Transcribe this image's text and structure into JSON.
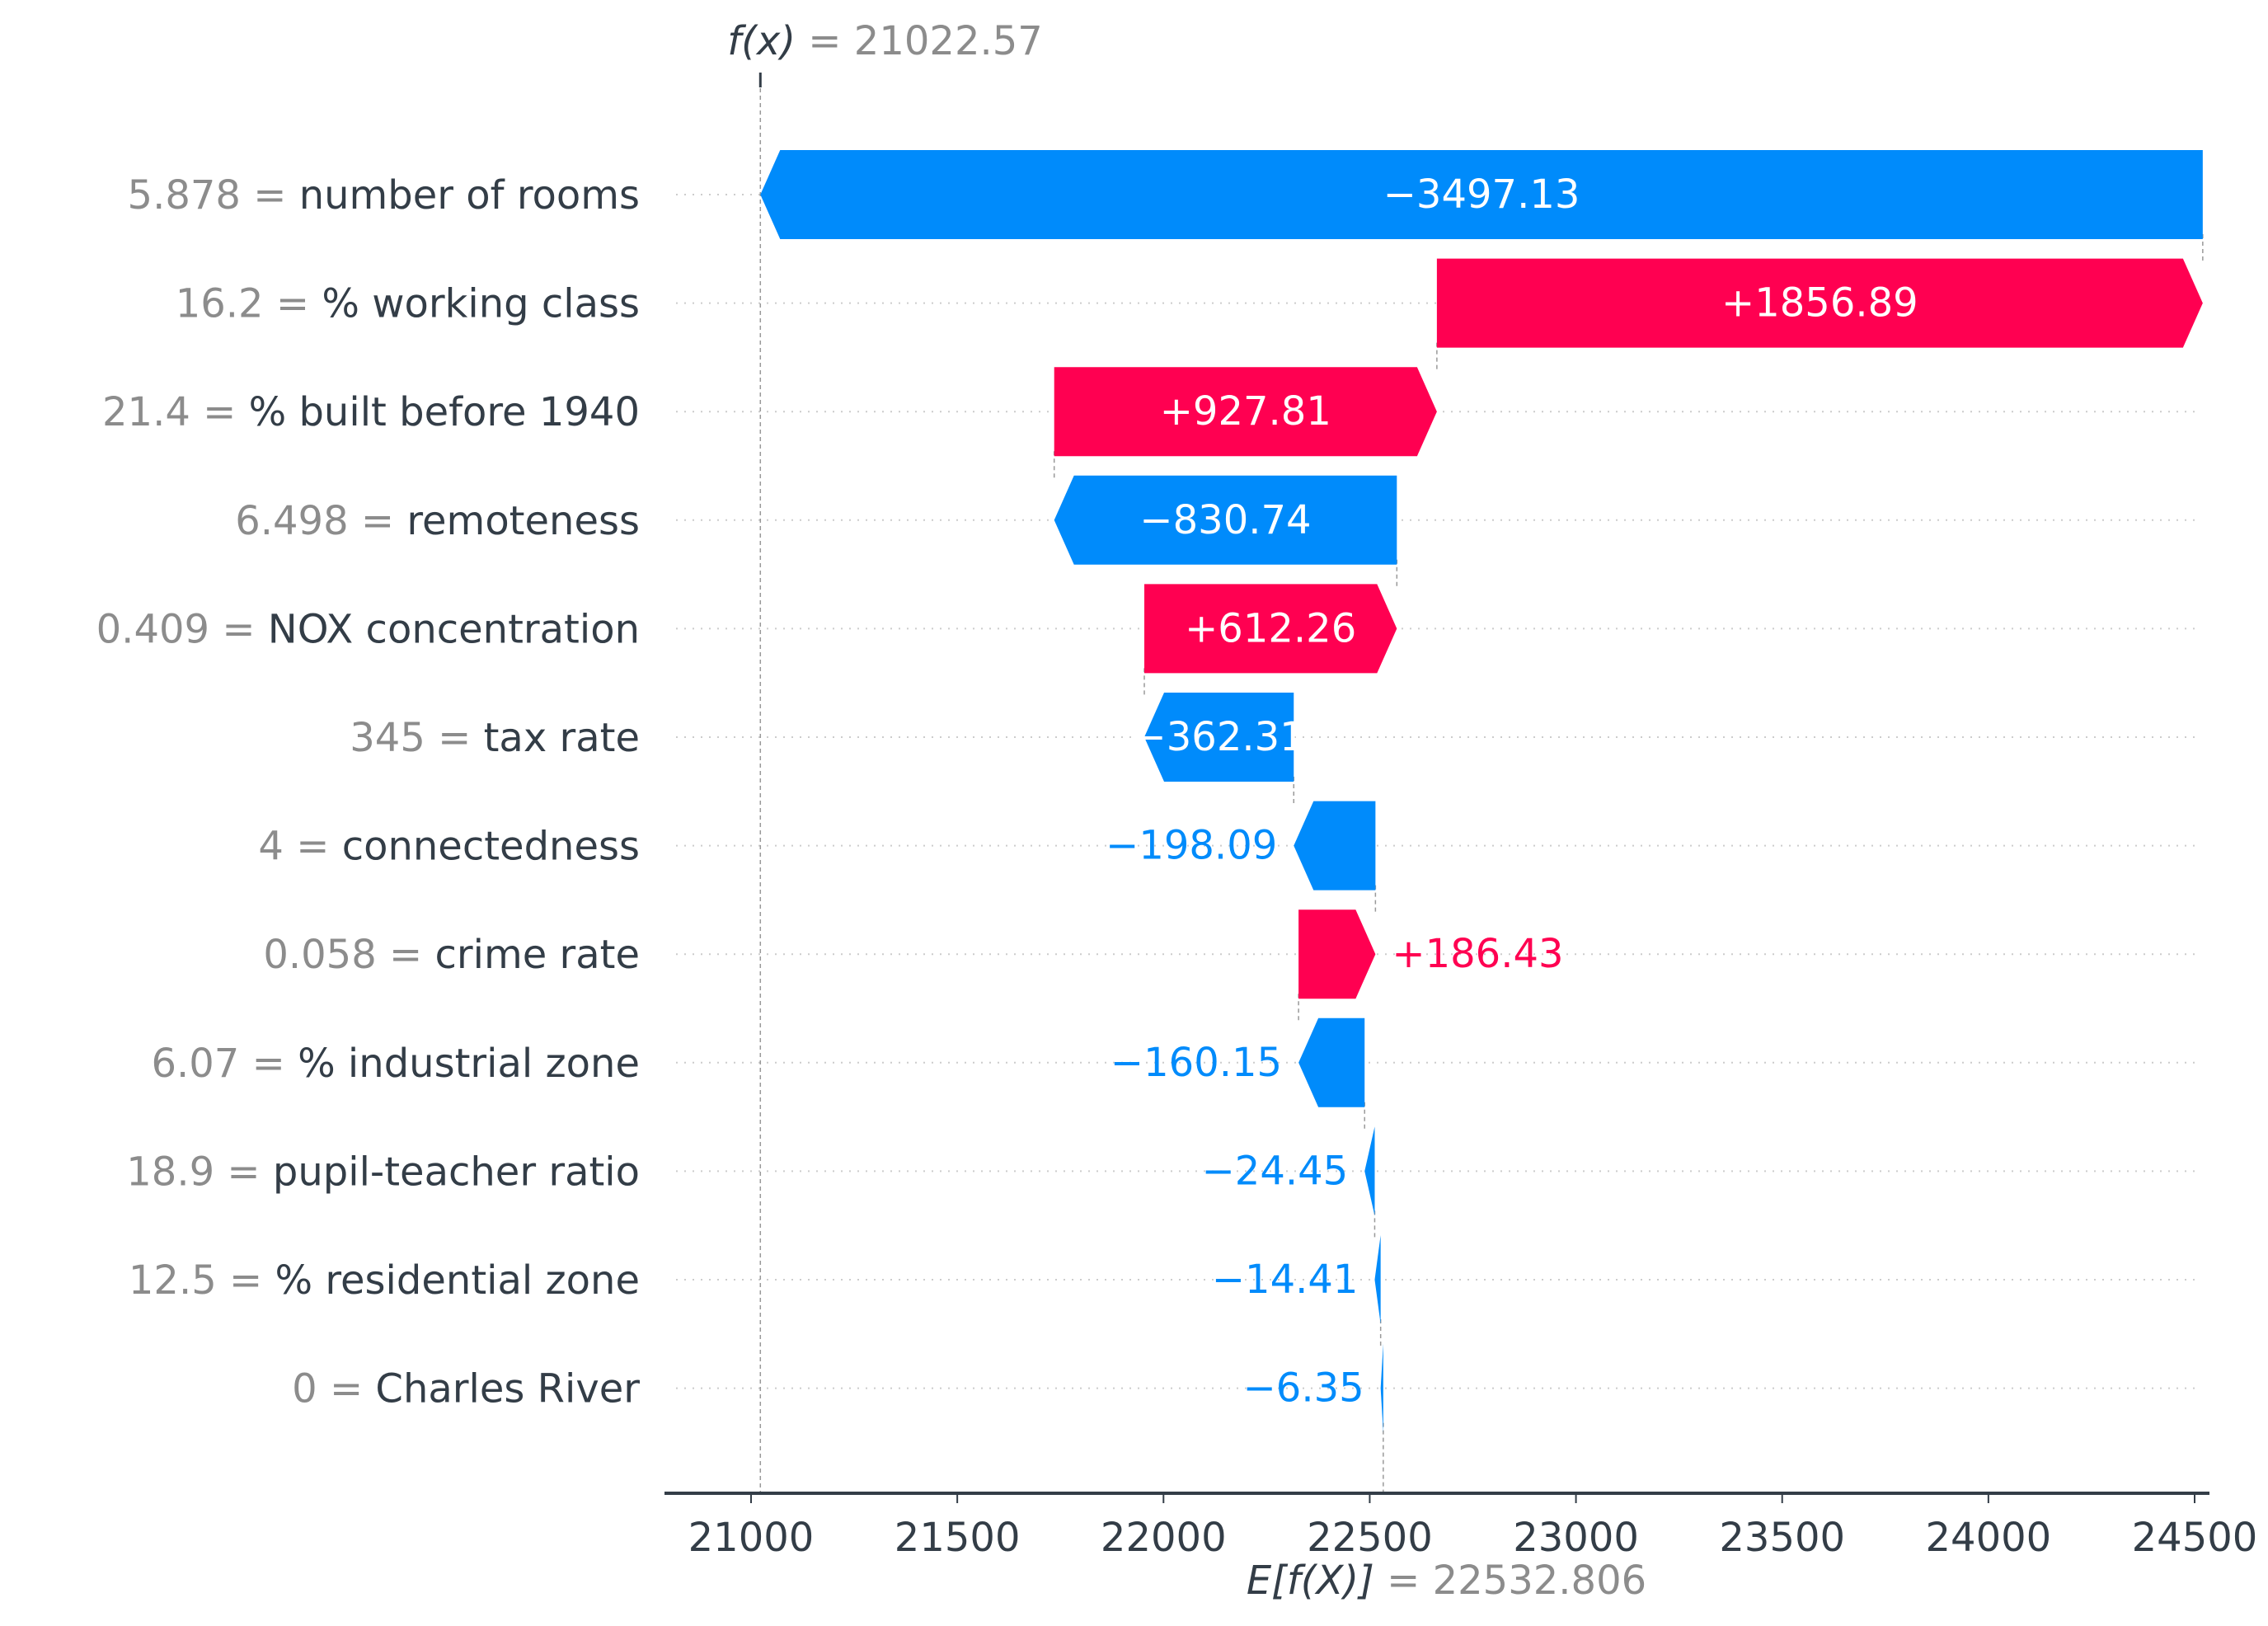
{
  "chart_data": {
    "type": "waterfall",
    "fx_label": "f(x)",
    "fx_value": "21022.57",
    "ex_label": "E[f(X)]",
    "ex_value": "22532.806",
    "base_value": 22532.806,
    "output_value": 21022.57,
    "xlim": [
      20810,
      24560
    ],
    "xticks": [
      21000,
      21500,
      22000,
      22500,
      23000,
      23500,
      24000,
      24500
    ],
    "grid": "dotted horizontal row lines",
    "colors": {
      "positive": "#ff0051",
      "negative": "#008bfb",
      "text": "#333d47",
      "muted": "#8c8c8c"
    },
    "features": [
      {
        "value": "5.878",
        "name": "number of rooms",
        "shap": -3497.13,
        "label": "−3497.13"
      },
      {
        "value": "16.2",
        "name": "% working class",
        "shap": 1856.89,
        "label": "+1856.89"
      },
      {
        "value": "21.4",
        "name": "% built before 1940",
        "shap": 927.81,
        "label": "+927.81"
      },
      {
        "value": "6.498",
        "name": "remoteness",
        "shap": -830.74,
        "label": "−830.74"
      },
      {
        "value": "0.409",
        "name": "NOX concentration",
        "shap": 612.26,
        "label": "+612.26"
      },
      {
        "value": "345",
        "name": "tax rate",
        "shap": -362.31,
        "label": "−362.31"
      },
      {
        "value": "4",
        "name": "connectedness",
        "shap": -198.09,
        "label": "−198.09"
      },
      {
        "value": "0.058",
        "name": "crime rate",
        "shap": 186.43,
        "label": "+186.43"
      },
      {
        "value": "6.07",
        "name": "% industrial zone",
        "shap": -160.15,
        "label": "−160.15"
      },
      {
        "value": "18.9",
        "name": "pupil-teacher ratio",
        "shap": -24.45,
        "label": "−24.45"
      },
      {
        "value": "12.5",
        "name": "% residential zone",
        "shap": -14.41,
        "label": "−14.41"
      },
      {
        "value": "0",
        "name": "Charles River",
        "shap": -6.35,
        "label": "−6.35"
      }
    ]
  }
}
